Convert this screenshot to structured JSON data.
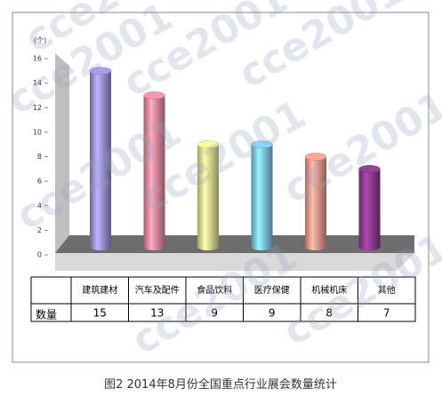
{
  "chart_data": {
    "type": "bar3d",
    "title": "图2 2014年8月份全国重点行业展会数量统计",
    "y_unit": "(个)",
    "row_header": "数量",
    "categories": [
      "建筑建材",
      "汽车及配件",
      "食品饮料",
      "医疗保健",
      "机械机床",
      "其他"
    ],
    "values": [
      15,
      13,
      9,
      9,
      8,
      7
    ],
    "colors": [
      "#9a8fd8",
      "#e8889c",
      "#e6e68c",
      "#7cc4ee",
      "#f0988a",
      "#8a3a8e"
    ],
    "ylim": [
      0,
      16
    ],
    "yticks": [
      0,
      2,
      4,
      6,
      8,
      10,
      12,
      14,
      16
    ],
    "watermark": "cce2001"
  }
}
